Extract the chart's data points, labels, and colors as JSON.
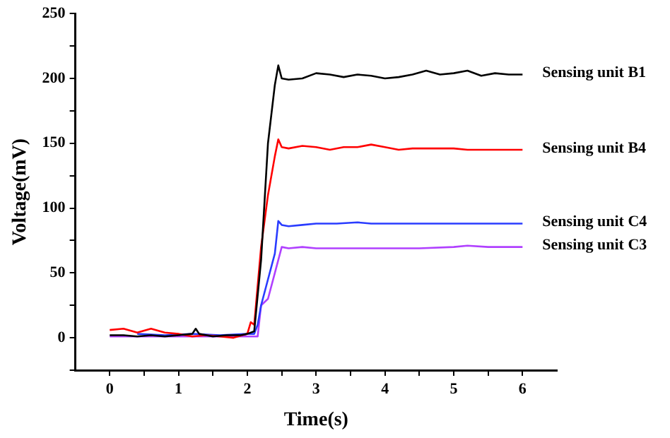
{
  "chart_data": {
    "type": "line",
    "xlabel": "Time(s)",
    "ylabel": "Voltage(mV)",
    "xlim": [
      -0.5,
      6.5
    ],
    "ylim": [
      -25,
      250
    ],
    "xticks": [
      0,
      {
        "value": 0.5,
        "label": null
      },
      1,
      {
        "value": 1.5,
        "label": null
      },
      2,
      {
        "value": 2.5,
        "label": null
      },
      3,
      {
        "value": 3.5,
        "label": null
      },
      4,
      {
        "value": 4.5,
        "label": null
      },
      5,
      {
        "value": 5.5,
        "label": null
      },
      6
    ],
    "yticks": [
      {
        "value": -25,
        "label": null
      },
      0,
      {
        "value": 25,
        "label": null
      },
      50,
      {
        "value": 75,
        "label": null
      },
      100,
      {
        "value": 125,
        "label": null
      },
      150,
      {
        "value": 175,
        "label": null
      },
      200,
      {
        "value": 225,
        "label": null
      },
      250
    ],
    "grid": false,
    "legend": false,
    "marker": "none",
    "line_style": "solid",
    "series": [
      {
        "name": "Sensing unit B1",
        "color": "#000000",
        "x": [
          0,
          0.2,
          0.4,
          0.6,
          0.8,
          1.0,
          1.2,
          1.25,
          1.3,
          1.5,
          1.7,
          1.9,
          2.0,
          2.1,
          2.2,
          2.3,
          2.4,
          2.45,
          2.5,
          2.6,
          2.8,
          3.0,
          3.2,
          3.4,
          3.6,
          3.8,
          4.0,
          4.2,
          4.4,
          4.6,
          4.8,
          5.0,
          5.2,
          5.4,
          5.6,
          5.8,
          6.0
        ],
        "values": [
          2,
          2,
          1,
          2,
          1,
          2,
          3,
          7,
          3,
          1,
          2,
          2,
          3,
          5,
          60,
          150,
          195,
          210,
          200,
          199,
          200,
          204,
          203,
          201,
          203,
          202,
          200,
          201,
          203,
          206,
          203,
          204,
          206,
          202,
          204,
          203,
          203
        ]
      },
      {
        "name": "Sensing unit B4",
        "color": "#ff0000",
        "x": [
          0,
          0.2,
          0.4,
          0.6,
          0.8,
          1.0,
          1.2,
          1.4,
          1.6,
          1.8,
          2.0,
          2.05,
          2.1,
          2.2,
          2.3,
          2.4,
          2.45,
          2.5,
          2.6,
          2.8,
          3.0,
          3.2,
          3.4,
          3.6,
          3.8,
          4.0,
          4.2,
          4.4,
          4.6,
          4.8,
          5.0,
          5.2,
          5.4,
          5.6,
          5.8,
          6.0
        ],
        "values": [
          6,
          7,
          4,
          7,
          4,
          3,
          1,
          2,
          1,
          0,
          3,
          12,
          10,
          70,
          110,
          140,
          153,
          147,
          146,
          148,
          147,
          145,
          147,
          147,
          149,
          147,
          145,
          146,
          146,
          146,
          146,
          145,
          145,
          145,
          145,
          145
        ]
      },
      {
        "name": "Sensing unit C4",
        "color": "#2a3cff",
        "x": [
          0.4,
          0.8,
          1.2,
          1.6,
          2.0,
          2.1,
          2.15,
          2.2,
          2.3,
          2.4,
          2.45,
          2.5,
          2.6,
          2.8,
          3.0,
          3.3,
          3.6,
          3.8,
          4.0,
          4.5,
          5.0,
          5.5,
          6.0
        ],
        "values": [
          3,
          2,
          3,
          2,
          3,
          3,
          10,
          25,
          45,
          65,
          90,
          87,
          86,
          87,
          88,
          88,
          89,
          88,
          88,
          88,
          88,
          88,
          88
        ]
      },
      {
        "name": "Sensing unit C3",
        "color": "#b040ff",
        "x": [
          0,
          0.4,
          0.8,
          1.2,
          1.6,
          2.0,
          2.15,
          2.2,
          2.3,
          2.4,
          2.5,
          2.6,
          2.8,
          3.0,
          3.5,
          4.0,
          4.5,
          5.0,
          5.2,
          5.5,
          6.0
        ],
        "values": [
          1,
          1,
          1,
          1,
          1,
          1,
          1,
          25,
          30,
          50,
          70,
          69,
          70,
          69,
          69,
          69,
          69,
          70,
          71,
          70,
          70
        ]
      }
    ]
  }
}
